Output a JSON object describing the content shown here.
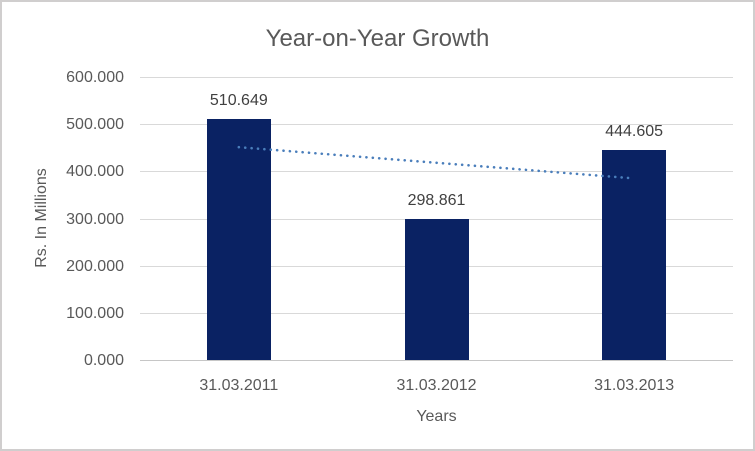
{
  "chart_data": {
    "type": "bar",
    "title": "Year-on-Year Growth",
    "xlabel": "Years",
    "ylabel": "Rs. In Millions",
    "categories": [
      "31.03.2011",
      "31.03.2012",
      "31.03.2013"
    ],
    "values": [
      510.649,
      298.861,
      444.605
    ],
    "data_labels": [
      "510.649",
      "298.861",
      "444.605"
    ],
    "ylim": [
      0,
      600
    ],
    "ytick_values": [
      0,
      100,
      200,
      300,
      400,
      500,
      600
    ],
    "ytick_labels": [
      "0.000",
      "100.000",
      "200.000",
      "300.000",
      "400.000",
      "500.000",
      "600.000"
    ],
    "grid": true,
    "legend": "none",
    "trendline": {
      "type": "linear",
      "style": "dotted",
      "start_value": 451.1,
      "end_value": 385.0
    },
    "colors": {
      "bar": "#0a2263",
      "trend": "#4a7ebb",
      "grid": "#d9d9d9",
      "axis_line": "#c6c6c6",
      "title_text": "#595959",
      "axis_text": "#595959",
      "label_text": "#404040",
      "border": "#d0cece",
      "background": "#ffffff"
    }
  }
}
